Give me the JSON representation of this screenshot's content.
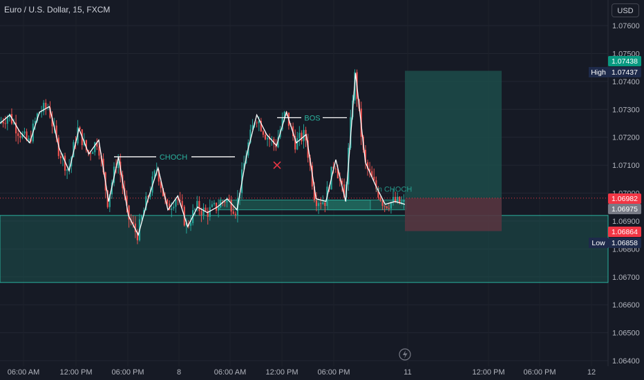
{
  "header": {
    "title": "Euro / U.S. Dollar, 15, FXCM",
    "currency": "USD"
  },
  "colors": {
    "background": "#161a25",
    "up": "#26a69a",
    "down": "#ef5350",
    "structure": "#ffffff",
    "zone": "#1d5e56",
    "tp_zone": "#1c4c4a",
    "sl_zone": "#563540"
  },
  "chart_data": {
    "type": "candlestick",
    "ylim": [
      1.064,
      1.0765
    ],
    "y_ticks": [
      "1.07600",
      "1.07500",
      "1.07400",
      "1.07300",
      "1.07200",
      "1.07100",
      "1.07000",
      "1.06900",
      "1.06800",
      "1.06700",
      "1.06600",
      "1.06500",
      "1.06400"
    ],
    "x_ticks": [
      "06:00 AM",
      "12:00 PM",
      "06:00 PM",
      "8",
      "06:00 AM",
      "12:00 PM",
      "06:00 PM",
      "11",
      "12:00 PM",
      "06:00 PM",
      "12"
    ],
    "annotations": {
      "choch": "CHOCH",
      "bos": "BOS",
      "mchoch": "m CHOCH"
    },
    "price_tags": [
      {
        "label": "",
        "value": "1.07438",
        "color": "#089981"
      },
      {
        "label": "High",
        "value": "1.07437",
        "color": "#1e2a4a"
      },
      {
        "label": "",
        "value": "1.06982",
        "color": "#f23645"
      },
      {
        "label": "",
        "value": "1.06975",
        "color": "#787b86"
      },
      {
        "label": "",
        "value": "1.06864",
        "color": "#f23645"
      },
      {
        "label": "Low",
        "value": "1.06858",
        "color": "#1e2a4a"
      }
    ],
    "structure_line": [
      1.0725,
      1.0728,
      1.0722,
      1.0718,
      1.0729,
      1.0731,
      1.0716,
      1.0708,
      1.0723,
      1.0714,
      1.0719,
      1.0697,
      1.0713,
      1.0692,
      1.0685,
      1.0698,
      1.0709,
      1.0694,
      1.0699,
      1.0688,
      1.0695,
      1.0693,
      1.0695,
      1.0698,
      1.0694,
      1.0714,
      1.0728,
      1.0721,
      1.0717,
      1.0729,
      1.0718,
      1.0721,
      1.0698,
      1.0697,
      1.0712,
      1.0697,
      1.0743,
      1.0711,
      1.0703,
      1.0696,
      1.0697,
      1.0696
    ],
    "current_price": 1.06982
  }
}
